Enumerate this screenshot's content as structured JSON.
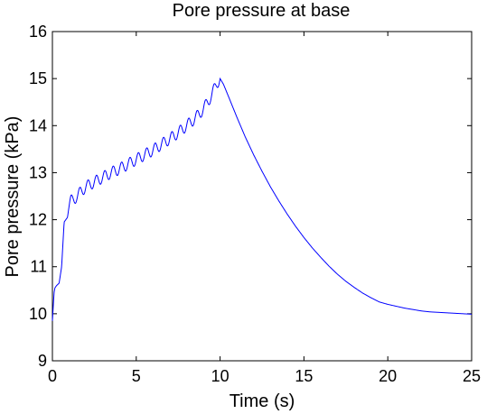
{
  "chart_data": {
    "type": "line",
    "title": "Pore pressure at base",
    "xlabel": "Time (s)",
    "ylabel": "Pore pressure (kPa)",
    "xlim": [
      0,
      25
    ],
    "ylim": [
      9,
      16
    ],
    "x_ticks": [
      0,
      5,
      10,
      15,
      20,
      25
    ],
    "y_ticks": [
      9,
      10,
      11,
      12,
      13,
      14,
      15,
      16
    ],
    "grid": false,
    "line_color": "#0000ff",
    "series": [
      {
        "x": [
          0,
          0.1,
          0.15,
          0.25,
          0.4,
          0.55,
          0.7,
          0.8,
          0.9,
          1.0,
          1.1,
          1.2,
          1.3,
          1.5,
          1.7,
          2.0,
          2.5,
          3.0,
          3.5,
          4.0,
          4.5,
          5.0,
          5.5,
          6.0,
          6.5,
          7.0,
          7.5,
          8.0,
          8.5,
          9.0,
          9.5,
          9.8,
          10.0,
          10.2,
          10.5,
          11.0,
          11.5,
          12.0,
          12.5,
          13.0,
          13.5,
          14.0,
          14.5,
          15.0,
          15.5,
          16.0,
          16.5,
          17.0,
          17.5,
          18.0,
          18.5,
          19.0,
          19.5,
          20.0,
          20.5,
          21.0,
          21.5,
          22.0,
          22.5,
          23.0,
          23.5,
          24.0,
          24.5,
          25.0
        ],
        "y": [
          9.85,
          10.45,
          10.55,
          10.6,
          10.65,
          11.0,
          11.95,
          12.0,
          12.05,
          12.3,
          12.4,
          12.42,
          12.45,
          12.5,
          12.6,
          12.7,
          12.8,
          12.9,
          13.0,
          13.08,
          13.18,
          13.28,
          13.38,
          13.48,
          13.6,
          13.72,
          13.85,
          14.0,
          14.15,
          14.35,
          14.65,
          14.9,
          15.0,
          14.88,
          14.62,
          14.18,
          13.76,
          13.38,
          13.03,
          12.7,
          12.4,
          12.12,
          11.86,
          11.62,
          11.4,
          11.2,
          11.01,
          10.84,
          10.69,
          10.56,
          10.44,
          10.34,
          10.25,
          10.2,
          10.16,
          10.12,
          10.09,
          10.06,
          10.04,
          10.03,
          10.02,
          10.01,
          10.0,
          9.99
        ],
        "oscillation": {
          "period_s": 0.5,
          "amplitude_kpa": 0.12,
          "from_s": 1.0,
          "to_s": 10.0
        }
      }
    ]
  }
}
